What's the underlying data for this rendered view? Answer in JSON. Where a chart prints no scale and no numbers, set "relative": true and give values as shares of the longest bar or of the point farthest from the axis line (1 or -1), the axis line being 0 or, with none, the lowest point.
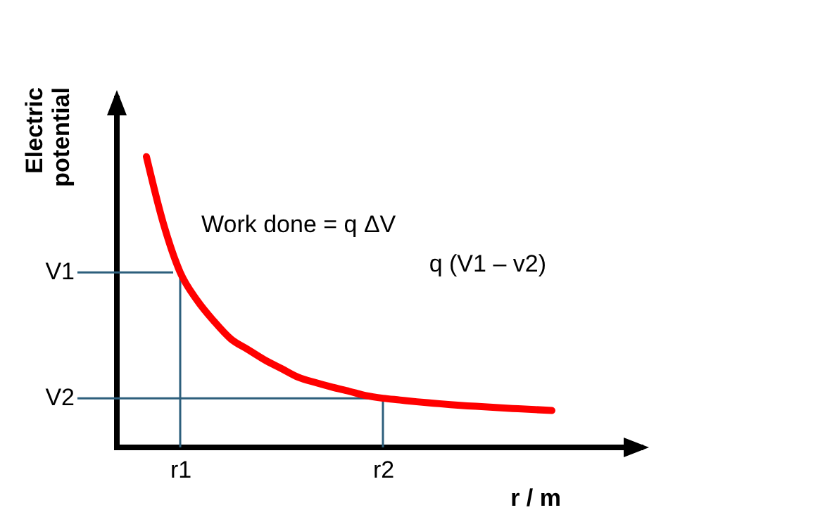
{
  "chart_data": {
    "type": "line",
    "xlabel": "r / m",
    "ylabel": "Electric potential",
    "relative": true,
    "categories": [
      null,
      null,
      "r1",
      null,
      null,
      null,
      null,
      null,
      null,
      null,
      null,
      null,
      null,
      null,
      "r2",
      null,
      null,
      null,
      null,
      null,
      null,
      null,
      null,
      null,
      null
    ],
    "series": [
      {
        "color": "#ff0000",
        "values": [
          1,
          0.771,
          0.602,
          0.506,
          0.434,
          0.373,
          0.337,
          0.301,
          0.271,
          0.241,
          0.223,
          0.207,
          0.193,
          0.178,
          0.169,
          0.163,
          0.157,
          0.152,
          0.147,
          0.143,
          0.14,
          0.136,
          0.133,
          0.13,
          0.127
        ]
      }
    ],
    "ref_lines": [
      {
        "axis": "x",
        "value": "r1",
        "color": "#2d5f7c"
      },
      {
        "axis": "x",
        "value": "r2",
        "color": "#2d5f7c"
      },
      {
        "axis": "y",
        "value": 0.602,
        "label": "V1",
        "color": "#2d5f7c"
      },
      {
        "axis": "y",
        "value": 0.169,
        "label": "V2",
        "color": "#2d5f7c"
      }
    ],
    "annotations": [
      "Work done = q ΔV",
      "q (V1 – v2)"
    ],
    "grid": false,
    "marker": "none",
    "line_style": "solid"
  }
}
